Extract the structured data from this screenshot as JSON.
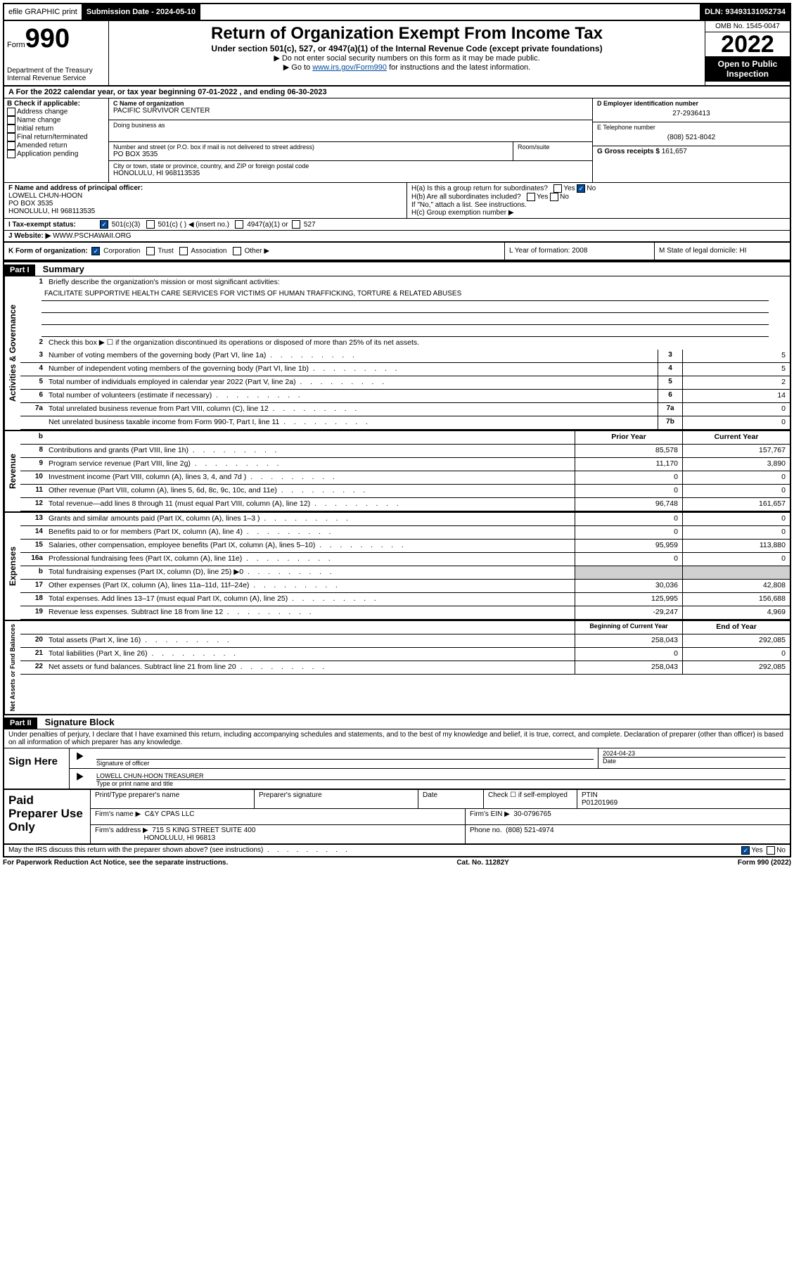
{
  "topbar": {
    "efile": "efile GRAPHIC print",
    "sub_label": "Submission Date - 2024-05-10",
    "dln": "DLN: 93493131052734"
  },
  "header": {
    "form_word": "Form",
    "form_num": "990",
    "dept": "Department of the Treasury",
    "irs": "Internal Revenue Service",
    "title": "Return of Organization Exempt From Income Tax",
    "subtitle": "Under section 501(c), 527, or 4947(a)(1) of the Internal Revenue Code (except private foundations)",
    "note1": "▶ Do not enter social security numbers on this form as it may be made public.",
    "note2_pre": "▶ Go to ",
    "note2_link": "www.irs.gov/Form990",
    "note2_post": " for instructions and the latest information.",
    "omb": "OMB No. 1545-0047",
    "year": "2022",
    "open": "Open to Public Inspection"
  },
  "rowA": "A For the 2022 calendar year, or tax year beginning 07-01-2022    , and ending 06-30-2023",
  "colB": {
    "header": "B Check if applicable:",
    "items": [
      "Address change",
      "Name change",
      "Initial return",
      "Final return/terminated",
      "Amended return",
      "Application pending"
    ]
  },
  "colC": {
    "name_label": "C Name of organization",
    "name": "PACIFIC SURVIVOR CENTER",
    "dba_label": "Doing business as",
    "addr_label": "Number and street (or P.O. box if mail is not delivered to street address)",
    "room_label": "Room/suite",
    "addr": "PO BOX 3535",
    "city_label": "City or town, state or province, country, and ZIP or foreign postal code",
    "city": "HONOLULU, HI  968113535"
  },
  "colD": {
    "ein_label": "D Employer identification number",
    "ein": "27-2936413",
    "tel_label": "E Telephone number",
    "tel": "(808) 521-8042",
    "gross_label": "G Gross receipts $",
    "gross": "161,657"
  },
  "rowF": {
    "label": "F Name and address of principal officer:",
    "name": "LOWELL CHUN-HOON",
    "addr1": "PO BOX 3535",
    "addr2": "HONOLULU, HI  968113535",
    "ha": "H(a)  Is this a group return for subordinates?",
    "hb": "H(b)  Are all subordinates included?",
    "hnote": "If \"No,\" attach a list. See instructions.",
    "hc": "H(c)  Group exemption number ▶"
  },
  "rowI": {
    "label": "I    Tax-exempt status:",
    "opts": [
      "501(c)(3)",
      "501(c) (   ) ◀ (insert no.)",
      "4947(a)(1) or",
      "527"
    ]
  },
  "rowJ": {
    "label": "J    Website: ▶",
    "val": "WWW.PSCHAWAII.ORG"
  },
  "rowK": {
    "k": "K Form of organization:",
    "opts": [
      "Corporation",
      "Trust",
      "Association",
      "Other ▶"
    ],
    "l": "L Year of formation: 2008",
    "m": "M State of legal domicile: HI"
  },
  "part1": {
    "hdr": "Part I",
    "title": "Summary",
    "l1": "Briefly describe the organization's mission or most significant activities:",
    "mission": "FACILITATE SUPPORTIVE HEALTH CARE SERVICES FOR VICTIMS OF HUMAN TRAFFICKING, TORTURE & RELATED ABUSES",
    "l2": "Check this box ▶ ☐  if the organization discontinued its operations or disposed of more than 25% of its net assets.",
    "rows_gov": [
      {
        "n": "3",
        "t": "Number of voting members of the governing body (Part VI, line 1a)",
        "box": "3",
        "v": "5"
      },
      {
        "n": "4",
        "t": "Number of independent voting members of the governing body (Part VI, line 1b)",
        "box": "4",
        "v": "5"
      },
      {
        "n": "5",
        "t": "Total number of individuals employed in calendar year 2022 (Part V, line 2a)",
        "box": "5",
        "v": "2"
      },
      {
        "n": "6",
        "t": "Total number of volunteers (estimate if necessary)",
        "box": "6",
        "v": "14"
      },
      {
        "n": "7a",
        "t": "Total unrelated business revenue from Part VIII, column (C), line 12",
        "box": "7a",
        "v": "0"
      },
      {
        "n": "",
        "t": "Net unrelated business taxable income from Form 990-T, Part I, line 11",
        "box": "7b",
        "v": "0"
      }
    ],
    "col_hdr": {
      "b": "b",
      "py": "Prior Year",
      "cy": "Current Year"
    },
    "rows_rev": [
      {
        "n": "8",
        "t": "Contributions and grants (Part VIII, line 1h)",
        "py": "85,578",
        "cy": "157,767"
      },
      {
        "n": "9",
        "t": "Program service revenue (Part VIII, line 2g)",
        "py": "11,170",
        "cy": "3,890"
      },
      {
        "n": "10",
        "t": "Investment income (Part VIII, column (A), lines 3, 4, and 7d )",
        "py": "0",
        "cy": "0"
      },
      {
        "n": "11",
        "t": "Other revenue (Part VIII, column (A), lines 5, 6d, 8c, 9c, 10c, and 11e)",
        "py": "0",
        "cy": "0"
      },
      {
        "n": "12",
        "t": "Total revenue—add lines 8 through 11 (must equal Part VIII, column (A), line 12)",
        "py": "96,748",
        "cy": "161,657"
      }
    ],
    "rows_exp": [
      {
        "n": "13",
        "t": "Grants and similar amounts paid (Part IX, column (A), lines 1–3 )",
        "py": "0",
        "cy": "0"
      },
      {
        "n": "14",
        "t": "Benefits paid to or for members (Part IX, column (A), line 4)",
        "py": "0",
        "cy": "0"
      },
      {
        "n": "15",
        "t": "Salaries, other compensation, employee benefits (Part IX, column (A), lines 5–10)",
        "py": "95,959",
        "cy": "113,880"
      },
      {
        "n": "16a",
        "t": "Professional fundraising fees (Part IX, column (A), line 11e)",
        "py": "0",
        "cy": "0"
      },
      {
        "n": "b",
        "t": "Total fundraising expenses (Part IX, column (D), line 25) ▶0",
        "py": "",
        "cy": "",
        "grey": true
      },
      {
        "n": "17",
        "t": "Other expenses (Part IX, column (A), lines 11a–11d, 11f–24e)",
        "py": "30,036",
        "cy": "42,808"
      },
      {
        "n": "18",
        "t": "Total expenses. Add lines 13–17 (must equal Part IX, column (A), line 25)",
        "py": "125,995",
        "cy": "156,688"
      },
      {
        "n": "19",
        "t": "Revenue less expenses. Subtract line 18 from line 12",
        "py": "-29,247",
        "cy": "4,969"
      }
    ],
    "col_hdr2": {
      "py": "Beginning of Current Year",
      "cy": "End of Year"
    },
    "rows_net": [
      {
        "n": "20",
        "t": "Total assets (Part X, line 16)",
        "py": "258,043",
        "cy": "292,085"
      },
      {
        "n": "21",
        "t": "Total liabilities (Part X, line 26)",
        "py": "0",
        "cy": "0"
      },
      {
        "n": "22",
        "t": "Net assets or fund balances. Subtract line 21 from line 20",
        "py": "258,043",
        "cy": "292,085"
      }
    ]
  },
  "part2": {
    "hdr": "Part II",
    "title": "Signature Block",
    "decl": "Under penalties of perjury, I declare that I have examined this return, including accompanying schedules and statements, and to the best of my knowledge and belief, it is true, correct, and complete. Declaration of preparer (other than officer) is based on all information of which preparer has any knowledge."
  },
  "sign": {
    "label": "Sign Here",
    "sig_label": "Signature of officer",
    "date_label": "Date",
    "date": "2024-04-23",
    "name": "LOWELL CHUN-HOON TREASURER",
    "name_label": "Type or print name and title"
  },
  "paid": {
    "label": "Paid Preparer Use Only",
    "h1": "Print/Type preparer's name",
    "h2": "Preparer's signature",
    "h3": "Date",
    "h4_pre": "Check ☐ if self-employed",
    "h5": "PTIN",
    "ptin": "P01201969",
    "firm_label": "Firm's name    ▶",
    "firm": "C&Y CPAS LLC",
    "ein_label": "Firm's EIN ▶",
    "ein": "30-0796765",
    "addr_label": "Firm's address ▶",
    "addr1": "715 S KING STREET SUITE 400",
    "addr2": "HONOLULU, HI  96813",
    "phone_label": "Phone no.",
    "phone": "(808) 521-4974"
  },
  "footer": {
    "discuss": "May the IRS discuss this return with the preparer shown above? (see instructions)",
    "paperwork": "For Paperwork Reduction Act Notice, see the separate instructions.",
    "cat": "Cat. No. 11282Y",
    "form": "Form 990 (2022)"
  },
  "side_labels": {
    "gov": "Activities & Governance",
    "rev": "Revenue",
    "exp": "Expenses",
    "net": "Net Assets or Fund Balances"
  }
}
